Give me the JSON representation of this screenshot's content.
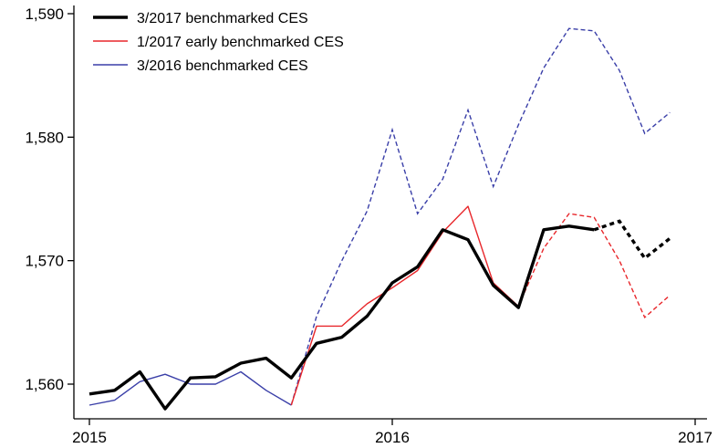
{
  "chart_data": {
    "type": "line",
    "title": "",
    "xlabel": "",
    "ylabel": "",
    "xlim": [
      "2015-01",
      "2017-01"
    ],
    "ylim": [
      1558,
      1590
    ],
    "x_ticks": [
      "2015",
      "2016",
      "2017"
    ],
    "y_ticks": [
      "1,560",
      "1,570",
      "1,580",
      "1,590"
    ],
    "y_tick_values": [
      1560,
      1570,
      1580,
      1590
    ],
    "x_tick_values": [
      "2015-01",
      "2016-01",
      "2017-01"
    ],
    "grid": false,
    "legend_position": "top-left",
    "series": [
      {
        "name": "3/2017 benchmarked CES",
        "color": "#000000",
        "line_width": "thick",
        "style_note": "solid through 2016-09, dashed after",
        "x": [
          "2015-01",
          "2015-02",
          "2015-03",
          "2015-04",
          "2015-05",
          "2015-06",
          "2015-07",
          "2015-08",
          "2015-09",
          "2015-10",
          "2015-11",
          "2015-12",
          "2016-01",
          "2016-02",
          "2016-03",
          "2016-04",
          "2016-05",
          "2016-06",
          "2016-07",
          "2016-08",
          "2016-09",
          "2016-10",
          "2016-11",
          "2016-12"
        ],
        "values": [
          1559.2,
          1559.5,
          1561.0,
          1558.0,
          1560.5,
          1560.6,
          1561.7,
          1562.1,
          1560.5,
          1563.3,
          1563.8,
          1565.5,
          1568.2,
          1569.5,
          1572.5,
          1571.7,
          1568.0,
          1566.2,
          1572.5,
          1572.8,
          1572.5,
          1573.2,
          1570.2,
          1571.8
        ],
        "solid_until": "2016-09"
      },
      {
        "name": "1/2017 early benchmarked CES",
        "color": "#e8272b",
        "line_width": "thin",
        "x": [
          "2015-09",
          "2015-10",
          "2015-11",
          "2015-12",
          "2016-01",
          "2016-02",
          "2016-03",
          "2016-04",
          "2016-05",
          "2016-06",
          "2016-07",
          "2016-08",
          "2016-09",
          "2016-10",
          "2016-11",
          "2016-12"
        ],
        "values": [
          1558.3,
          1564.7,
          1564.7,
          1566.5,
          1567.8,
          1569.2,
          1572.3,
          1574.4,
          1568.2,
          1566.3,
          1571.0,
          1573.8,
          1573.5,
          1570.0,
          1565.4,
          1567.2
        ],
        "solid_until": "2016-06"
      },
      {
        "name": "3/2016 benchmarked CES",
        "color": "#3a3fa8",
        "line_width": "thin",
        "x": [
          "2015-01",
          "2015-02",
          "2015-03",
          "2015-04",
          "2015-05",
          "2015-06",
          "2015-07",
          "2015-08",
          "2015-09",
          "2015-10",
          "2015-11",
          "2015-12",
          "2016-01",
          "2016-02",
          "2016-03",
          "2016-04",
          "2016-05",
          "2016-06",
          "2016-07",
          "2016-08",
          "2016-09",
          "2016-10",
          "2016-11",
          "2016-12"
        ],
        "values": [
          1558.3,
          1558.7,
          1560.2,
          1560.8,
          1560.0,
          1560.0,
          1561.0,
          1559.5,
          1558.3,
          1565.5,
          1570.0,
          1574.0,
          1580.6,
          1573.8,
          1576.6,
          1582.2,
          1576.0,
          1581.0,
          1585.6,
          1588.8,
          1588.6,
          1585.4,
          1580.3,
          1582.0
        ],
        "solid_until": "2015-09"
      }
    ]
  }
}
